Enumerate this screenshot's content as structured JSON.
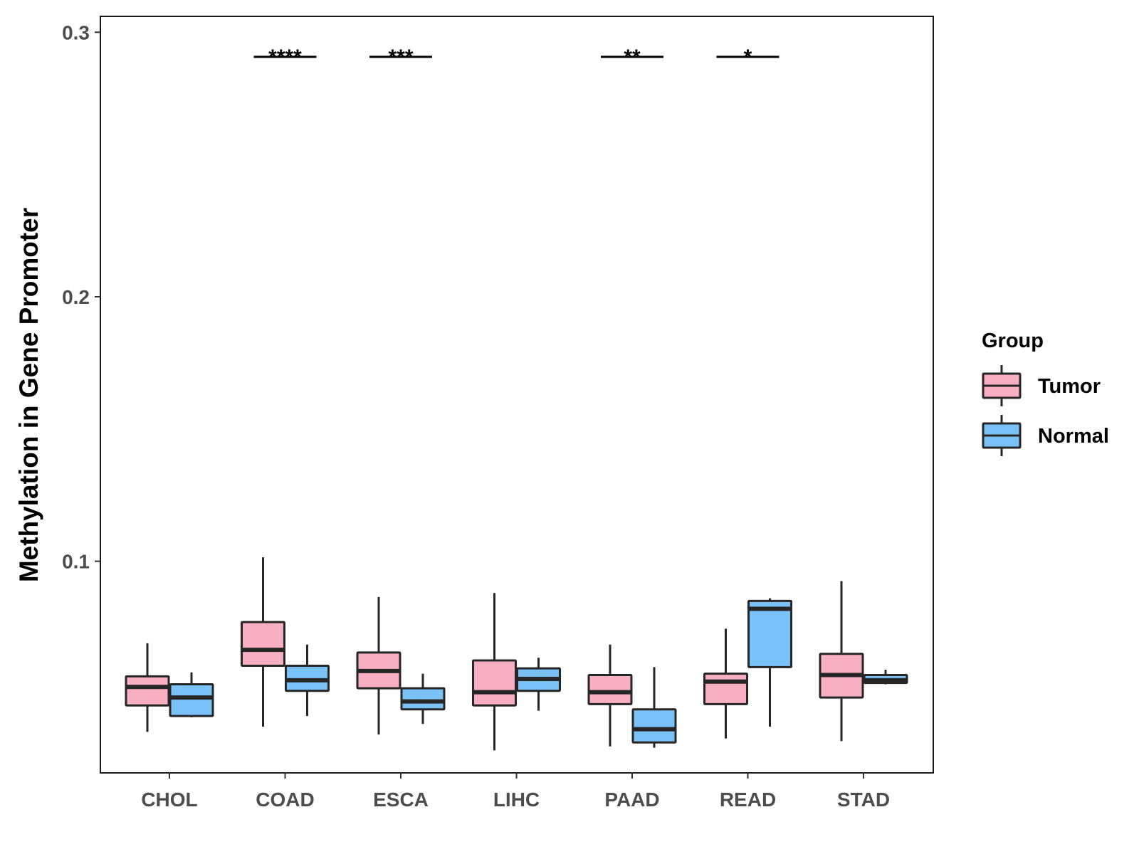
{
  "chart_data": {
    "type": "box",
    "title": "",
    "xlabel": "",
    "ylabel": "Methylation in Gene Promoter",
    "ylim": [
      0.02,
      0.306
    ],
    "yticks": [
      0.1,
      0.2,
      0.3
    ],
    "ytick_labels": [
      "0.1",
      "0.2",
      "0.3"
    ],
    "categories": [
      "CHOL",
      "COAD",
      "ESCA",
      "LIHC",
      "PAAD",
      "READ",
      "STAD"
    ],
    "legend": {
      "title": "Group",
      "placement": "right",
      "items": [
        {
          "name": "Tumor",
          "color": "#f8afc1"
        },
        {
          "name": "Normal",
          "color": "#7ac1f7"
        }
      ]
    },
    "series": [
      {
        "name": "Tumor",
        "color": "#f8afc1",
        "boxes": [
          {
            "category": "CHOL",
            "min": 0.0355,
            "q1": 0.0455,
            "median": 0.0525,
            "q3": 0.0565,
            "max": 0.069
          },
          {
            "category": "COAD",
            "min": 0.0375,
            "q1": 0.0605,
            "median": 0.0665,
            "q3": 0.077,
            "max": 0.1015
          },
          {
            "category": "ESCA",
            "min": 0.0345,
            "q1": 0.052,
            "median": 0.0585,
            "q3": 0.0655,
            "max": 0.0865
          },
          {
            "category": "LIHC",
            "min": 0.0285,
            "q1": 0.0455,
            "median": 0.0505,
            "q3": 0.0625,
            "max": 0.088
          },
          {
            "category": "PAAD",
            "min": 0.03,
            "q1": 0.046,
            "median": 0.0505,
            "q3": 0.057,
            "max": 0.0685
          },
          {
            "category": "READ",
            "min": 0.033,
            "q1": 0.046,
            "median": 0.0545,
            "q3": 0.0575,
            "max": 0.0745
          },
          {
            "category": "STAD",
            "min": 0.032,
            "q1": 0.0485,
            "median": 0.057,
            "q3": 0.065,
            "max": 0.0925
          }
        ]
      },
      {
        "name": "Normal",
        "color": "#7ac1f7",
        "boxes": [
          {
            "category": "CHOL",
            "min": 0.041,
            "q1": 0.0415,
            "median": 0.0485,
            "q3": 0.0535,
            "max": 0.058
          },
          {
            "category": "COAD",
            "min": 0.0415,
            "q1": 0.051,
            "median": 0.055,
            "q3": 0.0605,
            "max": 0.0685
          },
          {
            "category": "ESCA",
            "min": 0.0385,
            "q1": 0.044,
            "median": 0.047,
            "q3": 0.052,
            "max": 0.0575
          },
          {
            "category": "LIHC",
            "min": 0.0435,
            "q1": 0.051,
            "median": 0.0555,
            "q3": 0.0595,
            "max": 0.0635
          },
          {
            "category": "PAAD",
            "min": 0.0295,
            "q1": 0.0315,
            "median": 0.0365,
            "q3": 0.044,
            "max": 0.06
          },
          {
            "category": "READ",
            "min": 0.0375,
            "q1": 0.06,
            "median": 0.082,
            "q3": 0.085,
            "max": 0.086
          },
          {
            "category": "STAD",
            "min": 0.0535,
            "q1": 0.054,
            "median": 0.055,
            "q3": 0.057,
            "max": 0.059
          }
        ]
      }
    ],
    "significance": [
      {
        "category": "COAD",
        "label": "****",
        "y": 0.2915
      },
      {
        "category": "ESCA",
        "label": "***",
        "y": 0.2915
      },
      {
        "category": "PAAD",
        "label": "**",
        "y": 0.2915
      },
      {
        "category": "READ",
        "label": "*",
        "y": 0.2915
      }
    ]
  }
}
